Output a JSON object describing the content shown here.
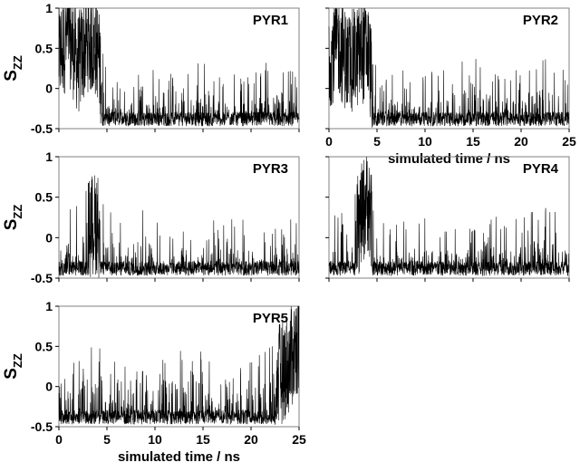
{
  "chart_data": [
    {
      "type": "line",
      "title": "PYR1",
      "ylabel": "S",
      "ylabel_sub": "ZZ",
      "xlabel": "",
      "xlim": [
        0,
        25
      ],
      "ylim": [
        -0.5,
        1
      ],
      "yticks": [
        "1",
        "0.5",
        "0",
        "-0.5"
      ],
      "xticks": [],
      "series": [
        {
          "values": [
            [
              0,
              0.4
            ],
            [
              1,
              0.7
            ],
            [
              2,
              0.3
            ],
            [
              3,
              0.6
            ],
            [
              4,
              0.5
            ],
            [
              5,
              -0.35
            ],
            [
              7,
              -0.35
            ],
            [
              10,
              -0.3
            ],
            [
              13,
              -0.25
            ],
            [
              15,
              -0.2
            ],
            [
              17,
              -0.3
            ],
            [
              20,
              -0.3
            ],
            [
              22,
              -0.2
            ],
            [
              25,
              -0.35
            ]
          ]
        }
      ]
    },
    {
      "type": "line",
      "title": "PYR2",
      "ylabel": "",
      "xlabel": "simulated time / ns",
      "xlim": [
        0,
        25
      ],
      "ylim": [
        -0.5,
        1
      ],
      "yticks": [],
      "xticks": [
        "0",
        "5",
        "10",
        "15",
        "20",
        "25"
      ],
      "series": [
        {
          "values": [
            [
              0,
              0.4
            ],
            [
              1,
              0.55
            ],
            [
              2,
              0.3
            ],
            [
              3,
              0.4
            ],
            [
              4,
              0.5
            ],
            [
              5,
              -0.35
            ],
            [
              8,
              -0.3
            ],
            [
              12,
              -0.3
            ],
            [
              15,
              -0.1
            ],
            [
              18,
              -0.3
            ],
            [
              20,
              -0.3
            ],
            [
              22,
              -0.15
            ],
            [
              25,
              -0.35
            ]
          ]
        }
      ]
    },
    {
      "type": "line",
      "title": "PYR3",
      "ylabel": "S",
      "ylabel_sub": "ZZ",
      "xlabel": "",
      "xlim": [
        0,
        25
      ],
      "ylim": [
        -0.5,
        1
      ],
      "yticks": [
        "1",
        "0.5",
        "0",
        "-0.5"
      ],
      "xticks": [],
      "series": [
        {
          "values": [
            [
              0,
              -0.3
            ],
            [
              2,
              -0.1
            ],
            [
              3,
              0.1
            ],
            [
              4,
              0.2
            ],
            [
              5,
              -0.2
            ],
            [
              7,
              -0.35
            ],
            [
              9,
              -0.1
            ],
            [
              10,
              -0.35
            ],
            [
              14,
              -0.35
            ],
            [
              16,
              -0.3
            ],
            [
              20,
              -0.3
            ],
            [
              22,
              -0.25
            ],
            [
              25,
              -0.35
            ]
          ]
        }
      ]
    },
    {
      "type": "line",
      "title": "PYR4",
      "ylabel": "",
      "xlabel": "",
      "xlim": [
        0,
        25
      ],
      "ylim": [
        -0.5,
        1
      ],
      "yticks": [],
      "xticks": [],
      "series": [
        {
          "values": [
            [
              0,
              -0.3
            ],
            [
              2,
              -0.2
            ],
            [
              3.5,
              0.3
            ],
            [
              4,
              0.5
            ],
            [
              5,
              -0.35
            ],
            [
              8,
              -0.3
            ],
            [
              12,
              -0.3
            ],
            [
              15,
              -0.25
            ],
            [
              18,
              -0.3
            ],
            [
              20,
              -0.3
            ],
            [
              23,
              -0.05
            ],
            [
              25,
              -0.3
            ]
          ]
        }
      ]
    },
    {
      "type": "line",
      "title": "PYR5",
      "ylabel": "S",
      "ylabel_sub": "ZZ",
      "xlabel": "simulated time / ns",
      "xlim": [
        0,
        25
      ],
      "ylim": [
        -0.5,
        1
      ],
      "yticks": [
        "1",
        "0.5",
        "0",
        "-0.5"
      ],
      "xticks": [
        "0",
        "5",
        "10",
        "15",
        "20",
        "25"
      ],
      "series": [
        {
          "values": [
            [
              0,
              -0.2
            ],
            [
              2,
              -0.1
            ],
            [
              4,
              0.0
            ],
            [
              5,
              -0.2
            ],
            [
              8,
              -0.35
            ],
            [
              10,
              -0.3
            ],
            [
              11,
              0.0
            ],
            [
              13,
              -0.1
            ],
            [
              14,
              0.1
            ],
            [
              16,
              -0.3
            ],
            [
              20,
              -0.2
            ],
            [
              22,
              0.0
            ],
            [
              24,
              0.3
            ],
            [
              25,
              0.6
            ]
          ]
        }
      ]
    }
  ]
}
